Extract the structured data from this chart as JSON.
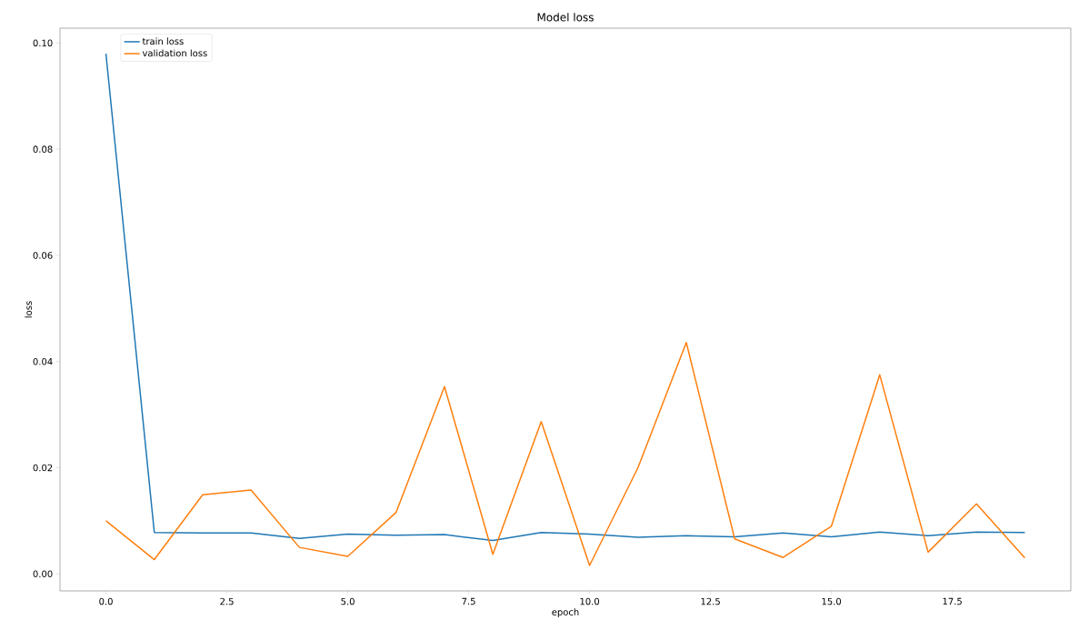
{
  "chart_data": {
    "type": "line",
    "title": "Model loss",
    "xlabel": "epoch",
    "ylabel": "loss",
    "x": [
      0,
      1,
      2,
      3,
      4,
      5,
      6,
      7,
      8,
      9,
      10,
      11,
      12,
      13,
      14,
      15,
      16,
      17,
      18,
      19
    ],
    "series": [
      {
        "name": "train loss",
        "color": "#1f77b4",
        "values": [
          0.098,
          0.0078,
          0.0077,
          0.0077,
          0.0067,
          0.0075,
          0.0073,
          0.0074,
          0.0063,
          0.0078,
          0.0075,
          0.0069,
          0.0072,
          0.007,
          0.0077,
          0.007,
          0.0079,
          0.0072,
          0.0079,
          0.0078
        ]
      },
      {
        "name": "validation loss",
        "color": "#ff7f0e",
        "values": [
          0.01,
          0.0027,
          0.0149,
          0.0158,
          0.005,
          0.0033,
          0.0116,
          0.0353,
          0.0037,
          0.0287,
          0.0016,
          0.02,
          0.0436,
          0.0066,
          0.0031,
          0.009,
          0.0375,
          0.0041,
          0.0132,
          0.003
        ]
      }
    ],
    "xlim": [
      -0.95,
      19.95
    ],
    "ylim": [
      -0.0032,
      0.1028
    ],
    "xticks": [
      {
        "value": 0,
        "label": "0.0"
      },
      2.5,
      {
        "value": 5,
        "label": "5.0"
      },
      7.5,
      {
        "value": 10,
        "label": "10.0"
      },
      12.5,
      {
        "value": 15,
        "label": "15.0"
      },
      17.5
    ],
    "yticks": [
      {
        "value": 0,
        "label": "0.00"
      },
      0.02,
      0.04,
      0.06,
      0.08,
      {
        "value": 0.1,
        "label": "0.10"
      }
    ],
    "legend": "top left",
    "grid": false,
    "marker": "none",
    "line_style": "solid"
  }
}
